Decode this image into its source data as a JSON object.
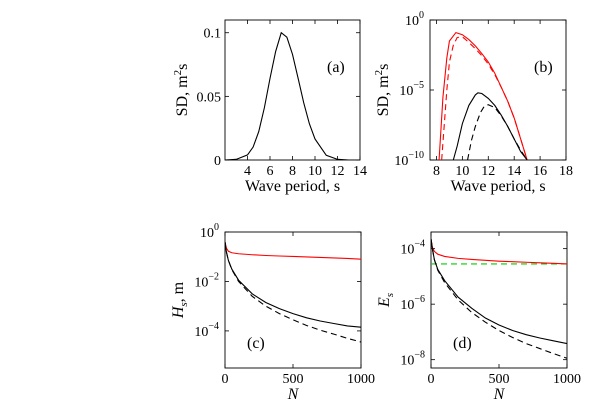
{
  "colors": {
    "black": "#000000",
    "red": "#ff0000",
    "green": "#00cc00"
  },
  "chart_data": [
    {
      "id": "a",
      "type": "line",
      "panel_label": "(a)",
      "xlabel": "Wave period, s",
      "ylabel": "SD, m²s",
      "ylabel_parts": [
        "SD, m",
        "2",
        "s"
      ],
      "xlim": [
        2,
        14
      ],
      "ylim": [
        0,
        0.11
      ],
      "xticks": [
        4,
        6,
        8,
        10,
        12,
        14
      ],
      "xtick_labels": [
        "4",
        "6",
        "8",
        "10",
        "12",
        "14"
      ],
      "yticks": [
        0,
        0.05,
        0.1
      ],
      "ytick_labels": [
        "0",
        "0.05",
        "0.1"
      ],
      "series": [
        {
          "color": "#000000",
          "style": "solid",
          "x": [
            2,
            3,
            4,
            4.5,
            5,
            5.5,
            6,
            6.5,
            7,
            7.5,
            8,
            8.5,
            9,
            9.5,
            10,
            11,
            12,
            13,
            14
          ],
          "y": [
            0.0,
            0.0005,
            0.004,
            0.0102,
            0.0223,
            0.0411,
            0.0641,
            0.0852,
            0.1,
            0.0965,
            0.083,
            0.0641,
            0.0449,
            0.0285,
            0.0165,
            0.0037,
            0.0005,
            0.0,
            0.0
          ]
        }
      ]
    },
    {
      "id": "b",
      "type": "line",
      "scale_y": "log",
      "panel_label": "(b)",
      "xlabel": "Wave period, s",
      "ylabel": "SD, m²s",
      "ylabel_parts": [
        "SD, m",
        "2",
        "s"
      ],
      "xlim": [
        7.5,
        18
      ],
      "ylim_exp": [
        -10,
        0
      ],
      "xticks": [
        8,
        10,
        12,
        14,
        16,
        18
      ],
      "xtick_labels": [
        "8",
        "10",
        "12",
        "14",
        "16",
        "18"
      ],
      "yticks_exp": [
        -10,
        -5,
        0
      ],
      "ytick_labels": [
        {
          "base": "10",
          "exp": "−10"
        },
        {
          "base": "10",
          "exp": "−5"
        },
        {
          "base": "10",
          "exp": "0"
        }
      ],
      "series": [
        {
          "color": "#ff0000",
          "style": "solid",
          "x": [
            8.2,
            8.5,
            8.8,
            9.0,
            9.5,
            10,
            10.5,
            11,
            11.5,
            12,
            12.5,
            13,
            13.5,
            14,
            14.5,
            15
          ],
          "log10y": [
            -10,
            -5.5,
            -2.7,
            -1.5,
            -0.9,
            -1.05,
            -1.4,
            -1.85,
            -2.4,
            -3.0,
            -3.8,
            -4.8,
            -5.8,
            -7.0,
            -8.5,
            -10
          ]
        },
        {
          "color": "#ff0000",
          "style": "dashed",
          "x": [
            8.4,
            8.8,
            9.0,
            9.3,
            9.6,
            10,
            10.5,
            11,
            11.5,
            12,
            12.5,
            13,
            13.5,
            14,
            14.5,
            15
          ],
          "log10y": [
            -10,
            -5.0,
            -3.0,
            -1.8,
            -1.25,
            -1.2,
            -1.6,
            -2.05,
            -2.55,
            -3.15,
            -3.9,
            -4.8,
            -5.8,
            -7.0,
            -8.5,
            -10
          ]
        },
        {
          "color": "#000000",
          "style": "solid",
          "x": [
            9.3,
            9.6,
            10,
            10.5,
            11,
            11.2,
            11.5,
            12,
            12.5,
            13,
            13.5,
            14,
            14.5,
            15
          ],
          "log10y": [
            -10,
            -9.0,
            -7.4,
            -6.1,
            -5.35,
            -5.2,
            -5.25,
            -5.6,
            -6.1,
            -6.8,
            -7.6,
            -8.5,
            -9.4,
            -10
          ]
        },
        {
          "color": "#000000",
          "style": "dashed",
          "x": [
            10.4,
            10.7,
            11,
            11.4,
            11.7,
            12,
            12.5,
            13,
            13.5,
            14,
            14.5,
            15
          ],
          "log10y": [
            -10,
            -8.6,
            -7.6,
            -6.6,
            -6.15,
            -6.05,
            -6.25,
            -6.85,
            -7.6,
            -8.5,
            -9.3,
            -10
          ]
        }
      ]
    },
    {
      "id": "c",
      "type": "line",
      "scale_y": "log",
      "panel_label": "(c)",
      "xlabel": "N",
      "ylabel_main": "H",
      "ylabel_sub": "s",
      "ylabel_unit": ", m",
      "xlim": [
        0,
        1000
      ],
      "ylim_exp": [
        -5.5,
        0
      ],
      "xticks": [
        0,
        500,
        1000
      ],
      "xtick_labels": [
        "0",
        "500",
        "1000"
      ],
      "yticks_exp": [
        -4,
        -2,
        0
      ],
      "ytick_labels": [
        {
          "base": "10",
          "exp": "−4"
        },
        {
          "base": "10",
          "exp": "−2"
        },
        {
          "base": "10",
          "exp": "0"
        }
      ],
      "series": [
        {
          "color": "#ff0000",
          "style": "solid",
          "x": [
            0,
            10,
            25,
            50,
            100,
            200,
            300,
            400,
            500,
            600,
            700,
            800,
            900,
            1000
          ],
          "log10y": [
            -0.4,
            -0.65,
            -0.78,
            -0.84,
            -0.88,
            -0.92,
            -0.95,
            -0.97,
            -0.99,
            -1.01,
            -1.03,
            -1.05,
            -1.07,
            -1.1
          ]
        },
        {
          "color": "#000000",
          "style": "solid",
          "x": [
            0,
            10,
            25,
            50,
            100,
            200,
            300,
            400,
            500,
            600,
            700,
            800,
            900,
            1000
          ],
          "log10y": [
            -0.4,
            -0.8,
            -1.15,
            -1.5,
            -1.95,
            -2.5,
            -2.85,
            -3.1,
            -3.3,
            -3.47,
            -3.6,
            -3.7,
            -3.8,
            -3.85
          ]
        },
        {
          "color": "#000000",
          "style": "dashed",
          "x": [
            0,
            10,
            25,
            50,
            100,
            200,
            300,
            400,
            500,
            600,
            700,
            800,
            900,
            1000
          ],
          "log10y": [
            -0.4,
            -0.8,
            -1.15,
            -1.52,
            -2.0,
            -2.6,
            -3.0,
            -3.3,
            -3.55,
            -3.78,
            -3.97,
            -4.13,
            -4.3,
            -4.45
          ]
        }
      ]
    },
    {
      "id": "d",
      "type": "line",
      "scale_y": "log",
      "panel_label": "(d)",
      "xlabel": "N",
      "ylabel_main": "E",
      "ylabel_sub": "s",
      "ylabel_unit": "",
      "xlim": [
        0,
        1000
      ],
      "ylim_exp": [
        -8.3,
        -3.4
      ],
      "xticks": [
        0,
        500,
        1000
      ],
      "xtick_labels": [
        "0",
        "500",
        "1000"
      ],
      "yticks_exp": [
        -8,
        -6,
        -4
      ],
      "ytick_labels": [
        {
          "base": "10",
          "exp": "−8"
        },
        {
          "base": "10",
          "exp": "−6"
        },
        {
          "base": "10",
          "exp": "−4"
        }
      ],
      "series": [
        {
          "color": "#00cc00",
          "style": "dashed",
          "x": [
            0,
            1000
          ],
          "log10y": [
            -4.55,
            -4.55
          ]
        },
        {
          "color": "#ff0000",
          "style": "solid",
          "x": [
            0,
            10,
            25,
            50,
            100,
            200,
            300,
            400,
            500,
            600,
            700,
            800,
            900,
            1000
          ],
          "log10y": [
            -3.65,
            -3.95,
            -4.1,
            -4.2,
            -4.28,
            -4.35,
            -4.39,
            -4.42,
            -4.45,
            -4.47,
            -4.49,
            -4.51,
            -4.53,
            -4.55
          ]
        },
        {
          "color": "#000000",
          "style": "solid",
          "x": [
            0,
            10,
            25,
            50,
            100,
            200,
            300,
            400,
            500,
            600,
            700,
            800,
            900,
            1000
          ],
          "log10y": [
            -3.65,
            -4.0,
            -4.4,
            -4.75,
            -5.15,
            -5.75,
            -6.15,
            -6.5,
            -6.75,
            -6.95,
            -7.1,
            -7.22,
            -7.32,
            -7.42
          ]
        },
        {
          "color": "#000000",
          "style": "dashed",
          "x": [
            0,
            10,
            25,
            50,
            100,
            200,
            300,
            400,
            500,
            600,
            700,
            800,
            900,
            1000
          ],
          "log10y": [
            -3.65,
            -4.0,
            -4.4,
            -4.78,
            -5.22,
            -5.85,
            -6.3,
            -6.65,
            -6.95,
            -7.2,
            -7.42,
            -7.6,
            -7.78,
            -7.95
          ]
        }
      ]
    }
  ]
}
